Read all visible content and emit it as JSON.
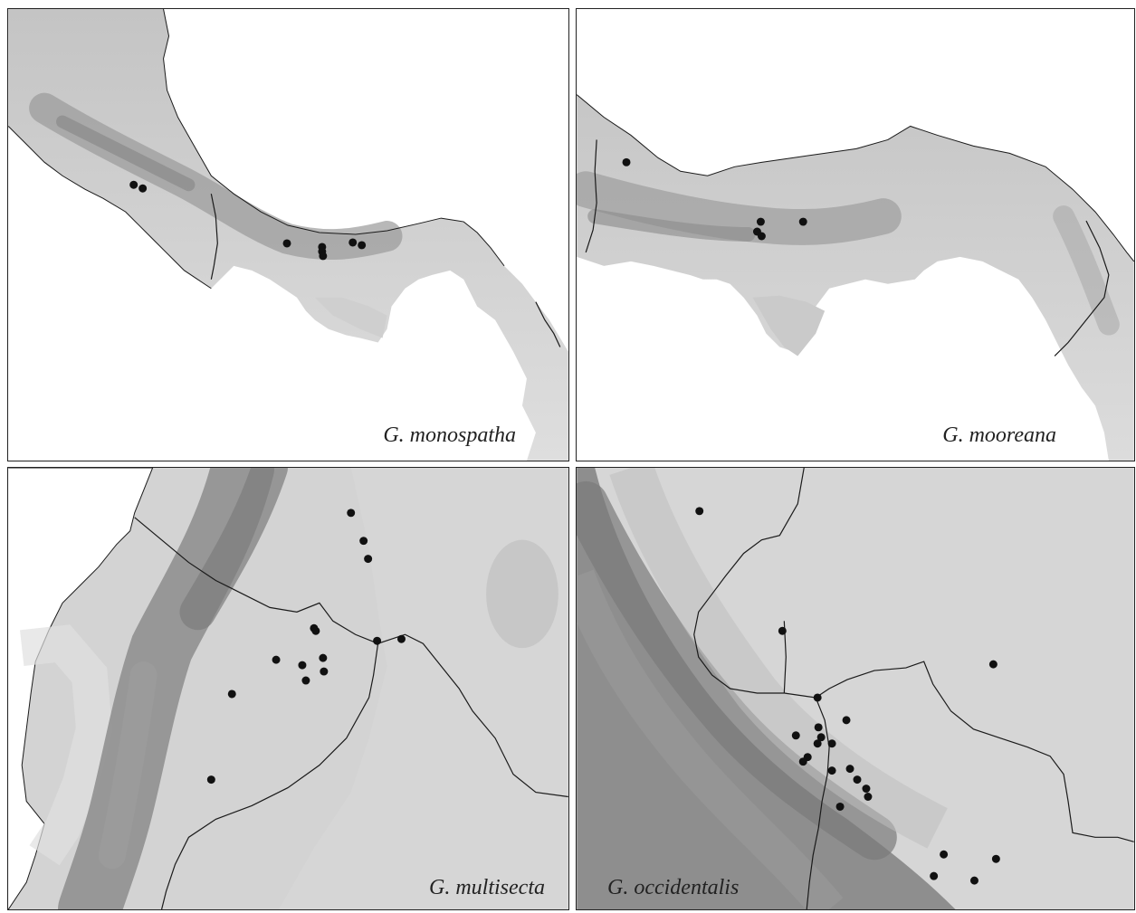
{
  "panels": [
    {
      "id": "p1",
      "species": "G. monospatha"
    },
    {
      "id": "p2",
      "species": "G. mooreana"
    },
    {
      "id": "p3",
      "species": "G. multisecta"
    },
    {
      "id": "p4",
      "species": "G. occidentalis"
    }
  ],
  "colors": {
    "ocean": "#ffffff",
    "lowland": "#d8d8d8",
    "highland": "#9e9e9e",
    "border": "#1a1a1a",
    "record_point": "#111111"
  }
}
